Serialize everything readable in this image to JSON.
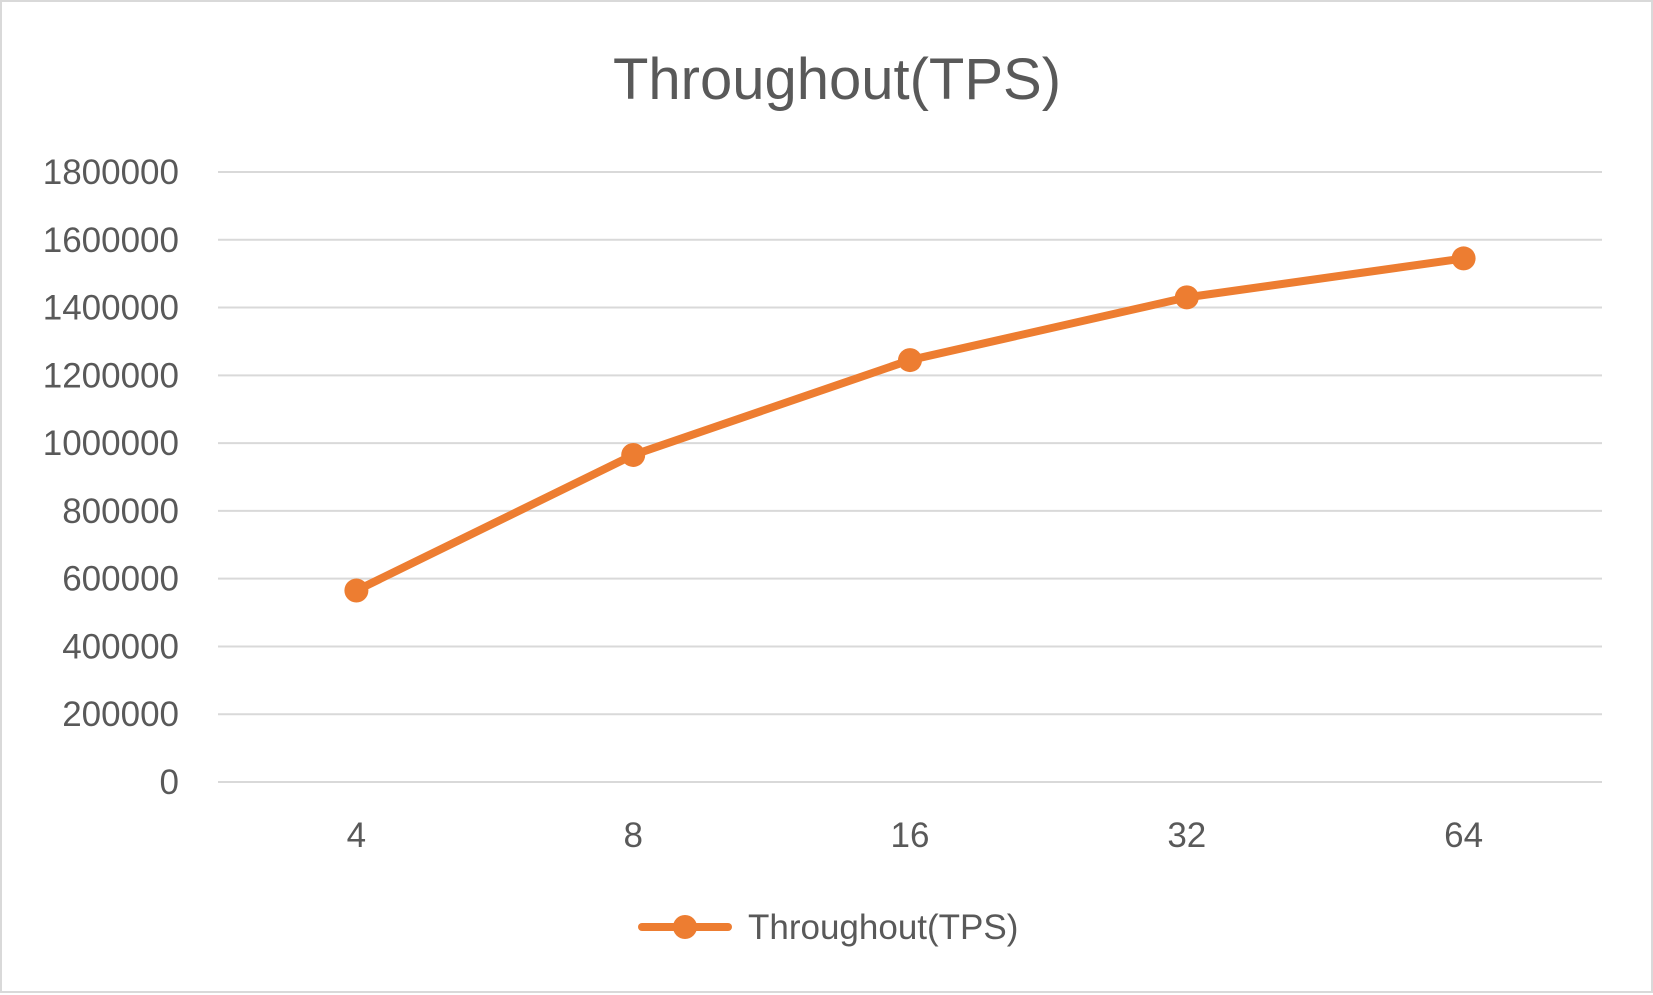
{
  "chart_data": {
    "type": "line",
    "title": "Throughout(TPS)",
    "xlabel": "",
    "ylabel": "",
    "categories": [
      "4",
      "8",
      "16",
      "32",
      "64"
    ],
    "series": [
      {
        "name": "Throughout(TPS)",
        "values": [
          565000,
          965000,
          1245000,
          1430000,
          1545000
        ],
        "color": "#ed7d31"
      }
    ],
    "ylim": [
      0,
      1800000
    ],
    "yticks": [
      0,
      200000,
      400000,
      600000,
      800000,
      1000000,
      1200000,
      1400000,
      1600000,
      1800000
    ],
    "ytick_labels": [
      "0",
      "200000",
      "400000",
      "600000",
      "800000",
      "1000000",
      "1200000",
      "1400000",
      "1600000",
      "1800000"
    ],
    "grid": true,
    "gridline_color": "#d9d9d9",
    "text_color": "#595959",
    "legend_position": "bottom",
    "markers": "circle"
  }
}
